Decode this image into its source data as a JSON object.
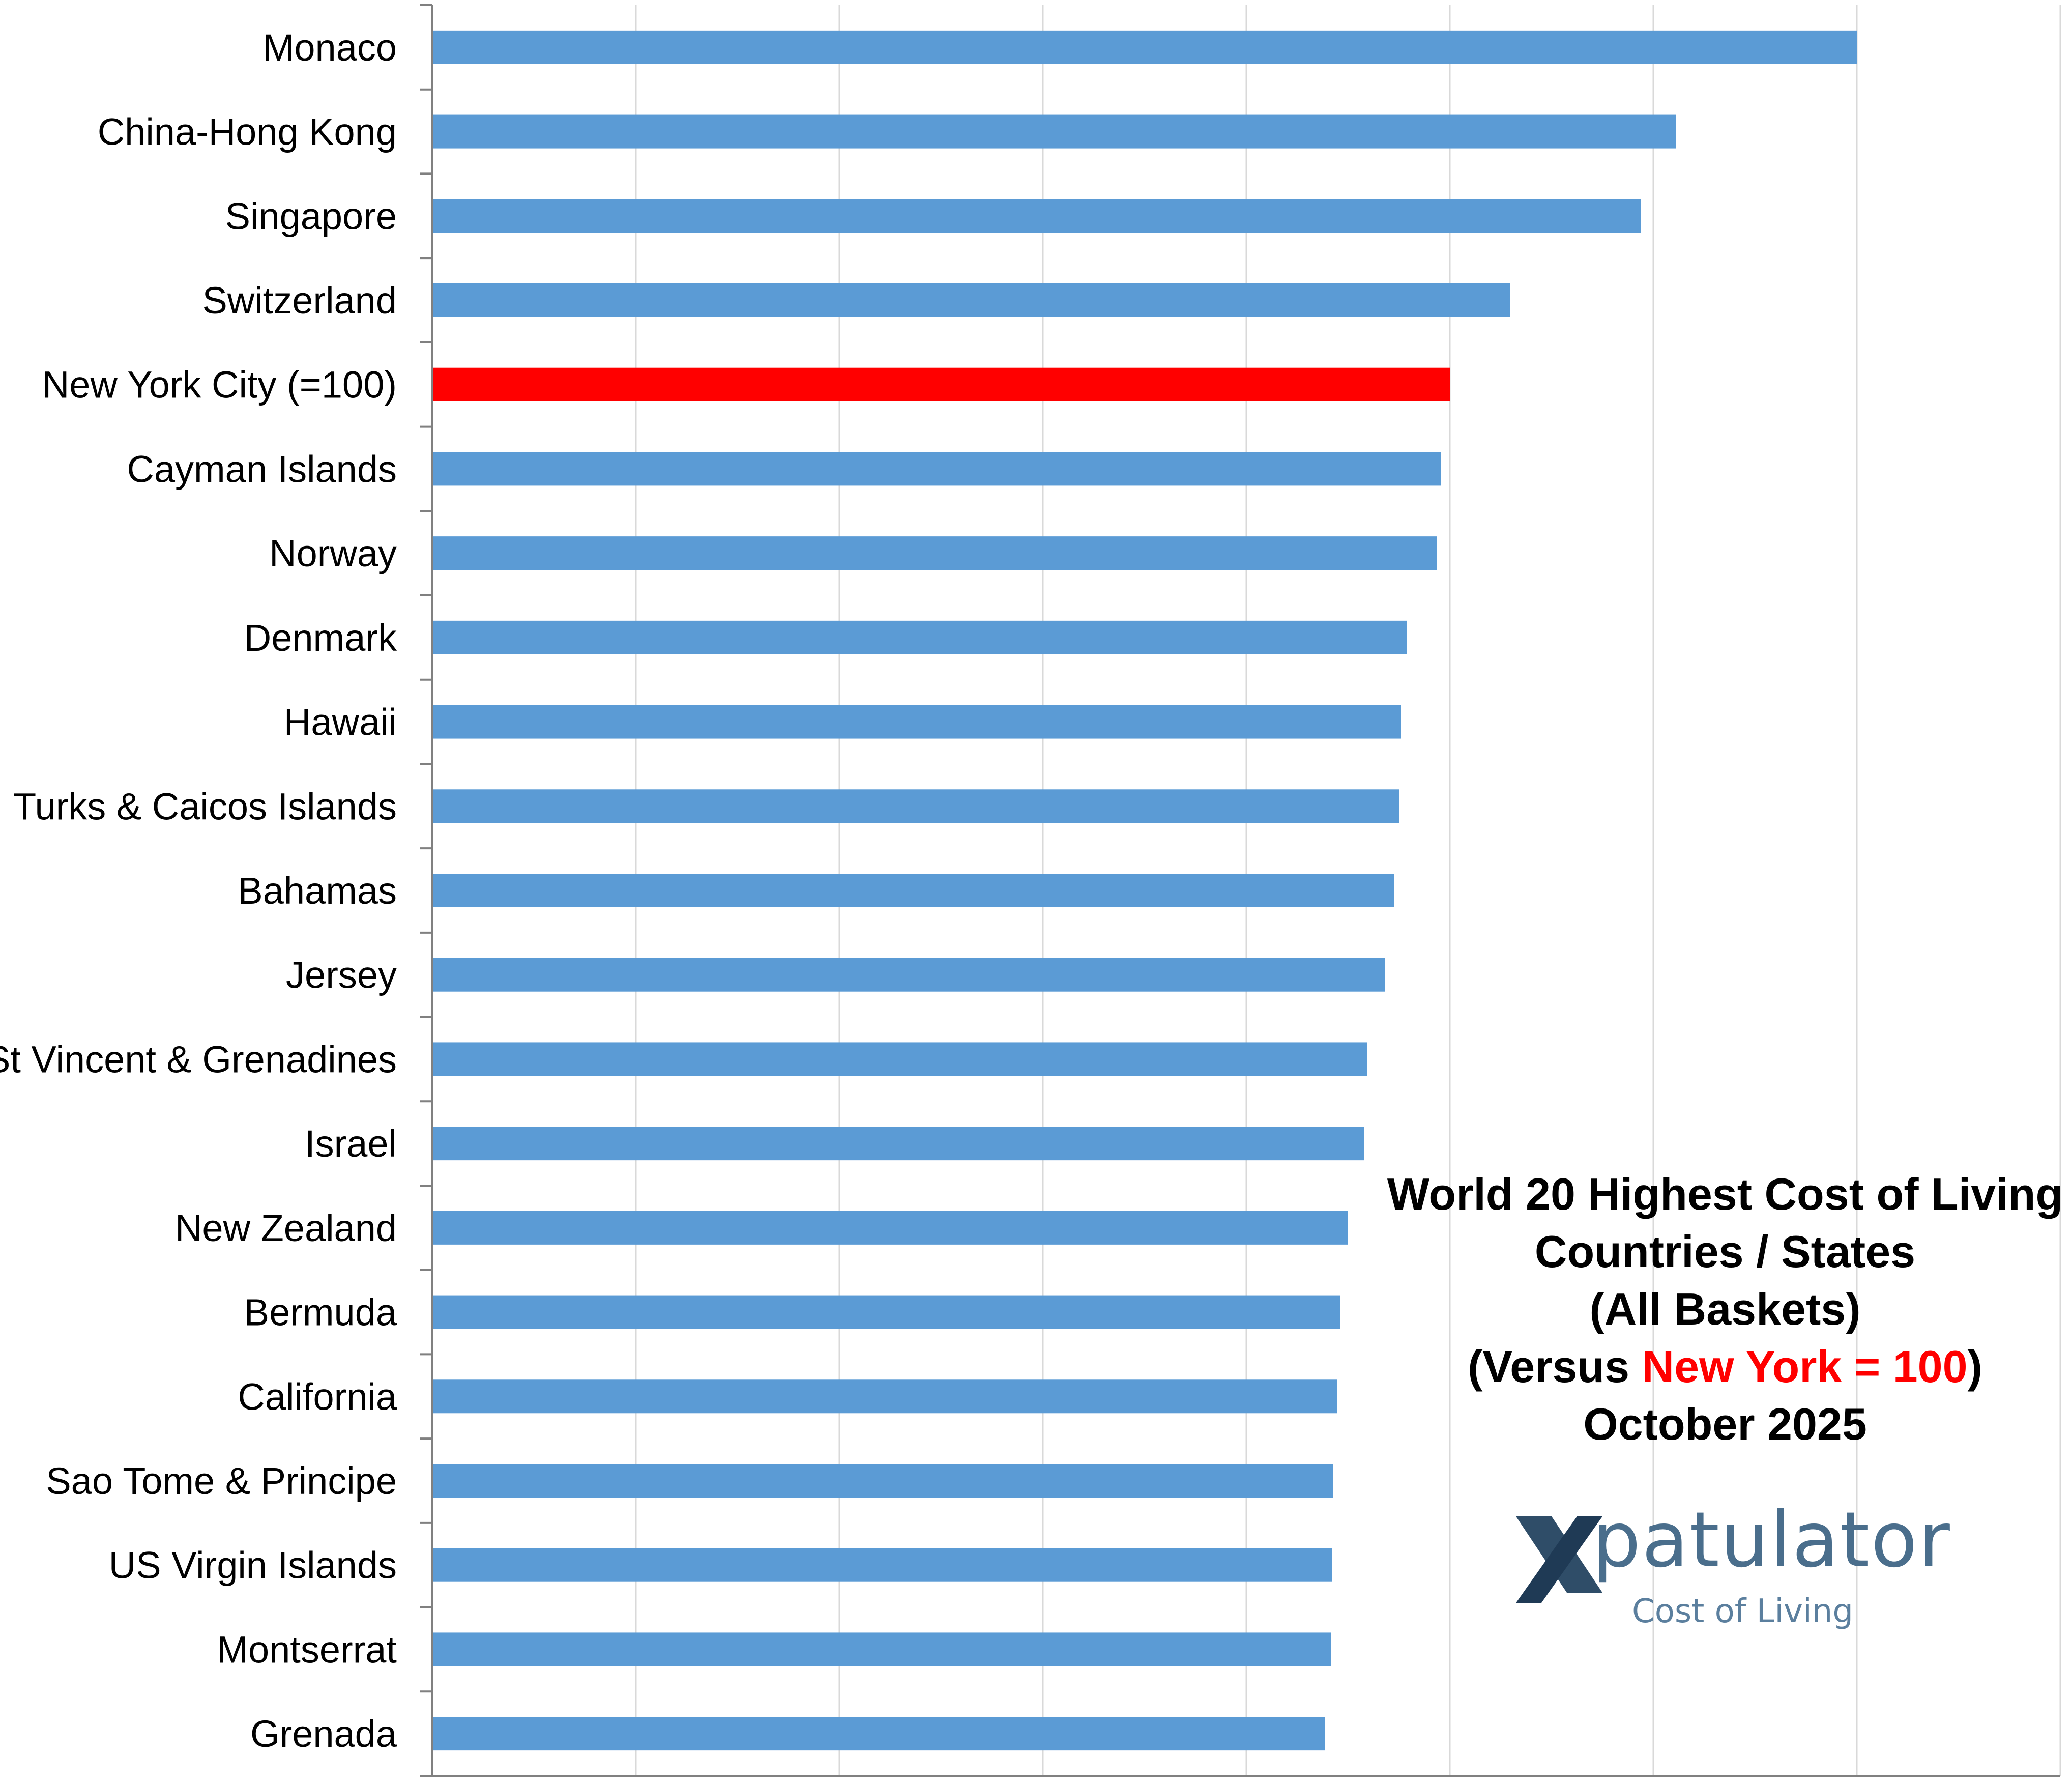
{
  "chart_data": {
    "type": "bar",
    "orientation": "horizontal",
    "categories": [
      "Monaco",
      "China-Hong Kong",
      "Singapore",
      "Switzerland",
      "New York City (=100)",
      "Cayman Islands",
      "Norway",
      "Denmark",
      "Hawaii",
      "Turks & Caicos Islands",
      "Bahamas",
      "Jersey",
      "St Vincent & Grenadines",
      "Israel",
      "New Zealand",
      "Bermuda",
      "California",
      "Sao Tome & Principe",
      "US Virgin Islands",
      "Montserrat",
      "Grenada"
    ],
    "values": [
      140,
      122.2,
      118.8,
      105.9,
      100,
      99.1,
      98.7,
      95.8,
      95.2,
      95.0,
      94.5,
      93.6,
      91.9,
      91.6,
      90.0,
      89.2,
      88.9,
      88.5,
      88.4,
      88.3,
      87.7
    ],
    "highlight_index": 4,
    "bar_color": "#5b9bd5",
    "highlight_color": "#ff0000",
    "xlim": [
      0,
      160
    ],
    "grid": true,
    "title_lines": [
      [
        {
          "text": "World 20 Highest Cost of Living",
          "hl": false
        }
      ],
      [
        {
          "text": "Countries / States",
          "hl": false
        }
      ],
      [
        {
          "text": "(All Baskets)",
          "hl": false
        }
      ],
      [
        {
          "text": "(Versus ",
          "hl": false
        },
        {
          "text": "New York = 100",
          "hl": true
        },
        {
          "text": ")",
          "hl": false
        }
      ],
      [
        {
          "text": "October 2025",
          "hl": false
        }
      ]
    ]
  },
  "logo": {
    "name": "xpatulator-logo",
    "wordmark": "patulator",
    "tagline": "Cost of Living"
  }
}
